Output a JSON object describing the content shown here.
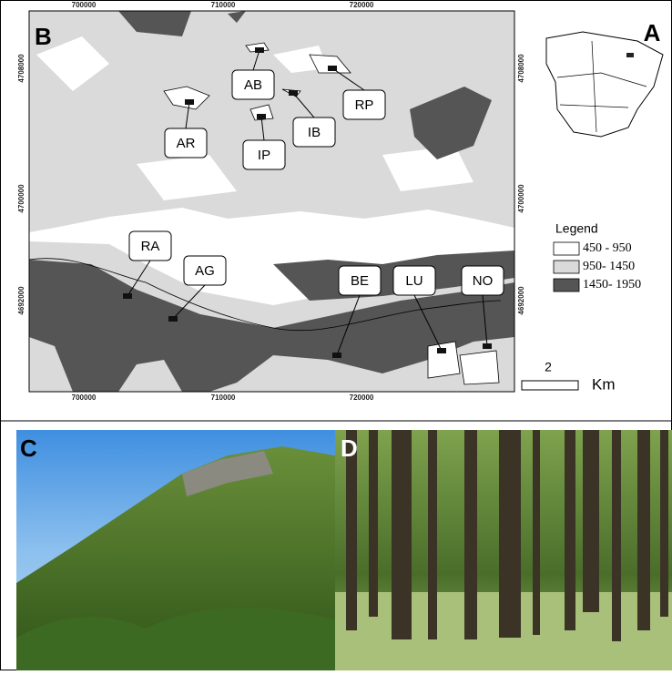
{
  "map": {
    "letter": "B",
    "x_ticks": [
      "700000",
      "710000",
      "720000"
    ],
    "y_ticks": [
      "4708000",
      "4700000",
      "4692000"
    ],
    "sites": [
      "AB",
      "AR",
      "IP",
      "IB",
      "RP",
      "RA",
      "AG",
      "BE",
      "LU",
      "NO"
    ]
  },
  "inset": {
    "letter": "A"
  },
  "legend": {
    "title": "Legend",
    "items": [
      "450 - 950",
      "950- 1450",
      "1450- 1950"
    ]
  },
  "scale": {
    "value": "2",
    "unit": "Km"
  },
  "photos": {
    "left": "C",
    "right": "D"
  }
}
